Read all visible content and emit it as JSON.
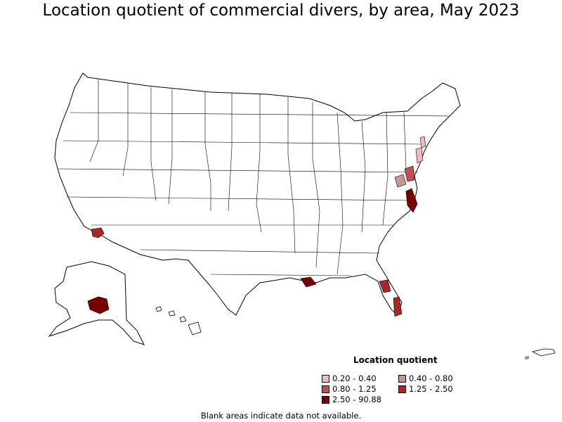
{
  "title": "Location quotient of commercial divers, by area, May 2023",
  "legend": {
    "title": "Location quotient",
    "items": [
      {
        "label": "0.20 - 0.40",
        "color": "#f4b8c0"
      },
      {
        "label": "0.40 - 0.80",
        "color": "#c8968f"
      },
      {
        "label": "0.80 - 1.25",
        "color": "#c05050"
      },
      {
        "label": "1.25 - 2.50",
        "color": "#a82828"
      },
      {
        "label": "2.50 - 90.88",
        "color": "#7a0000"
      }
    ]
  },
  "footnote": "Blank areas indicate data not available."
}
